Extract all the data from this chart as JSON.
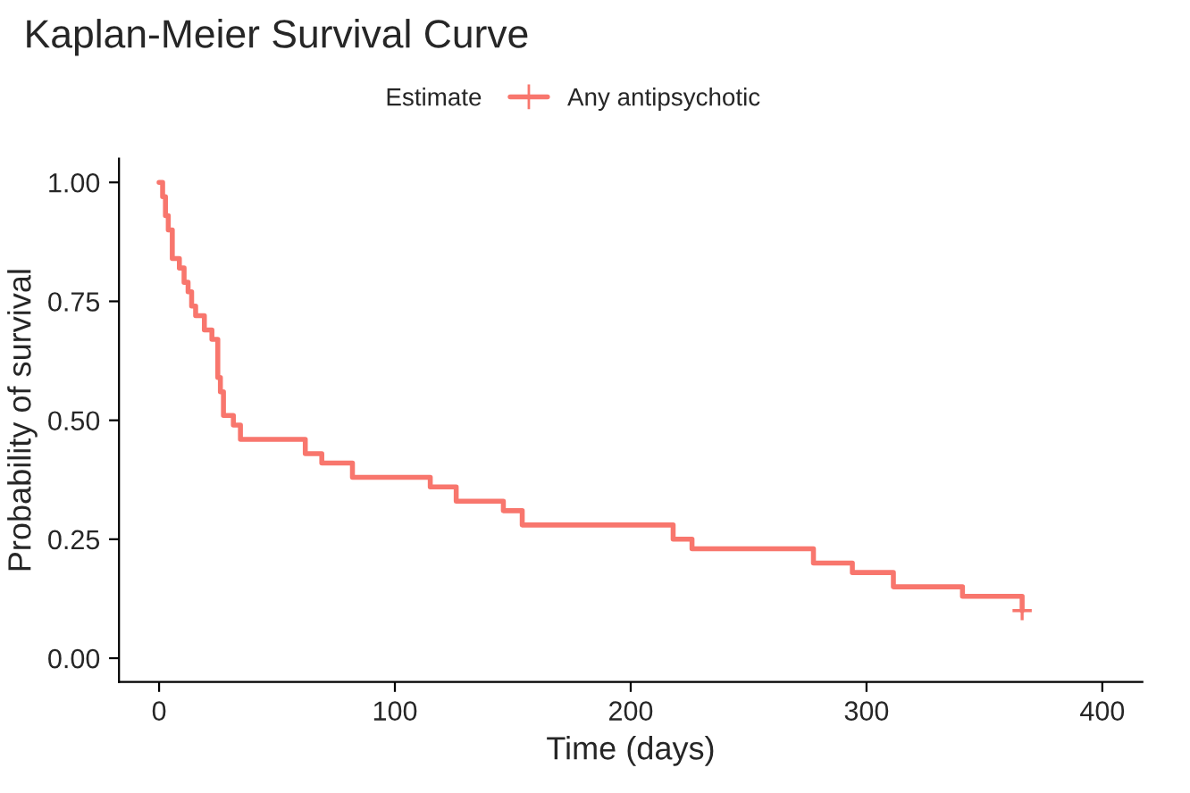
{
  "chart_data": {
    "type": "step",
    "title": "Kaplan-Meier Survival Curve",
    "xlabel": "Time (days)",
    "ylabel": "Probability of survival",
    "legend_title": "Estimate",
    "series": [
      {
        "name": "Any antipsychotic",
        "color": "#f8766d",
        "x": [
          0,
          1.5,
          2.7,
          3.9,
          5.6,
          8.6,
          10.6,
          12.3,
          13.8,
          15.5,
          19.2,
          22.4,
          24.9,
          26,
          27.3,
          31.5,
          34.5,
          62,
          69,
          82,
          115,
          126,
          146,
          154,
          218,
          226,
          277.5,
          294,
          311.4,
          340.7,
          366
        ],
        "values": [
          1.0,
          0.97,
          0.93,
          0.9,
          0.84,
          0.82,
          0.79,
          0.77,
          0.74,
          0.72,
          0.69,
          0.67,
          0.59,
          0.56,
          0.51,
          0.49,
          0.46,
          0.43,
          0.41,
          0.38,
          0.36,
          0.33,
          0.31,
          0.28,
          0.25,
          0.23,
          0.2,
          0.18,
          0.15,
          0.13,
          0.1
        ]
      },
      {
        "color": "#f8766d",
        "type": "scatter",
        "marker": "cross",
        "x": [
          366
        ],
        "values": [
          0.1
        ]
      }
    ],
    "xlim": [
      -17,
      417
    ],
    "ylim": [
      -0.05,
      1.05
    ],
    "xticks": [
      0,
      100,
      200,
      300,
      400
    ],
    "yticks": [
      {
        "value": 0,
        "label": "0.00"
      },
      {
        "value": 0.25,
        "label": "0.25"
      },
      {
        "value": 0.5,
        "label": "0.50"
      },
      {
        "value": 0.75,
        "label": "0.75"
      },
      {
        "value": 1,
        "label": "1.00"
      }
    ],
    "grid": false,
    "legend": "top"
  }
}
